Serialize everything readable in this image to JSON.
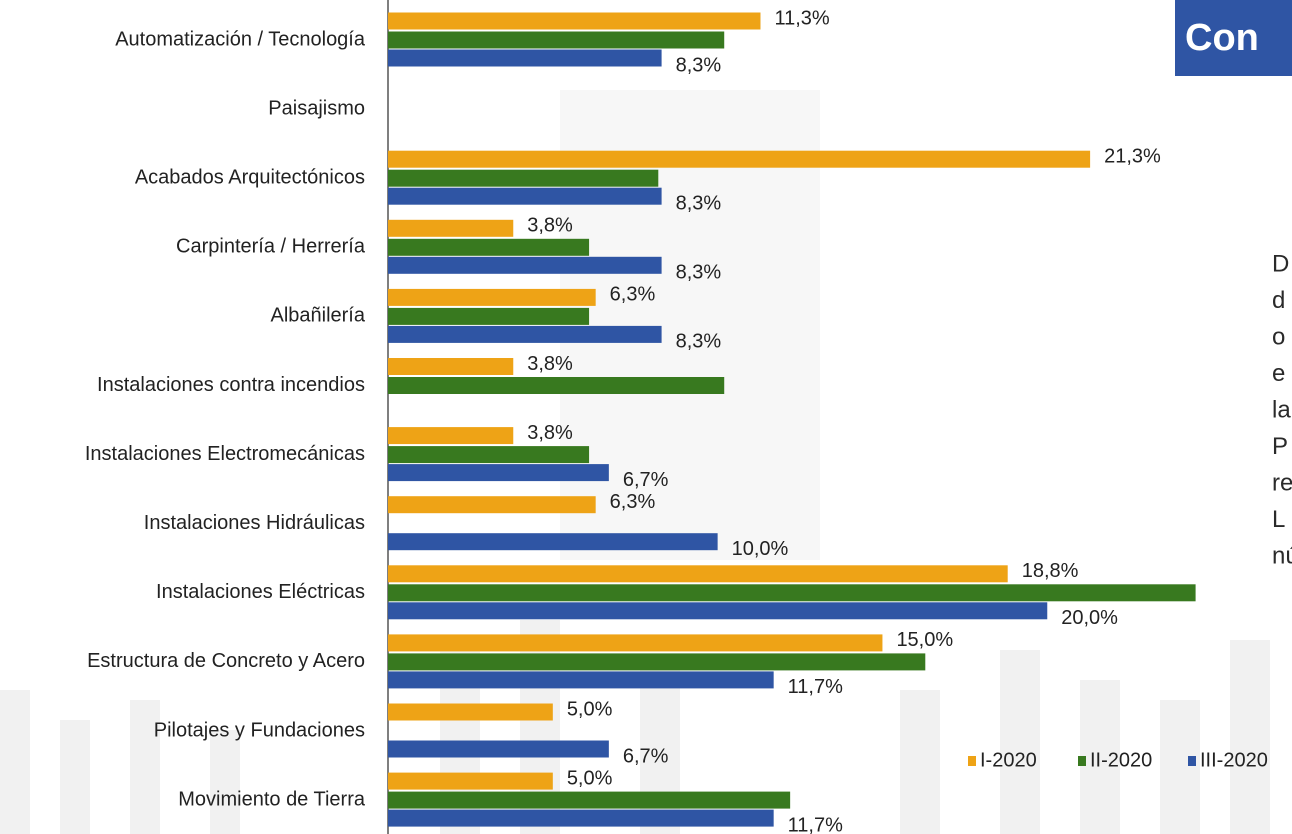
{
  "chart_data": {
    "type": "hbar",
    "title": "Con",
    "side_text": [
      "D",
      "d",
      "o",
      "e",
      "la",
      "P",
      "re",
      "L",
      "nú"
    ],
    "categories": [
      "Automatización / Tecnología",
      "Paisajismo",
      "Acabados Arquitectónicos",
      "Carpintería / Herrería",
      "Albañilería",
      "Instalaciones contra incendios",
      "Instalaciones Electromecánicas",
      "Instalaciones Hidráulicas",
      "Instalaciones Eléctricas",
      "Estructura de Concreto y Acero",
      "Pilotajes y Fundaciones",
      "Movimiento de Tierra"
    ],
    "series": [
      {
        "name": "I-2020",
        "color": "#eea316",
        "values": [
          11.3,
          null,
          21.3,
          3.8,
          6.3,
          3.8,
          3.8,
          6.3,
          18.8,
          15.0,
          5.0,
          5.0
        ],
        "value_labels": [
          "11,3%",
          null,
          "21,3%",
          "3,8%",
          "6,3%",
          "3,8%",
          "3,8%",
          "6,3%",
          "18,8%",
          "15,0%",
          "5,0%",
          "5,0%"
        ]
      },
      {
        "name": "II-2020",
        "color": "#38791f",
        "values": [
          10.2,
          null,
          8.2,
          6.1,
          6.1,
          10.2,
          6.1,
          null,
          24.5,
          16.3,
          null,
          12.2
        ]
      },
      {
        "name": "III-2020",
        "color": "#2f55a4",
        "values": [
          8.3,
          null,
          8.3,
          8.3,
          8.3,
          null,
          6.7,
          10.0,
          20.0,
          11.7,
          6.7,
          11.7
        ],
        "value_labels": [
          "8,3%",
          null,
          "8,3%",
          "8,3%",
          "8,3%",
          null,
          "6,7%",
          "10,0%",
          "20,0%",
          "11,7%",
          "6,7%",
          "11,7%"
        ]
      }
    ],
    "xlim": [
      0,
      27
    ],
    "legend": "bottom-right",
    "grid": false
  }
}
